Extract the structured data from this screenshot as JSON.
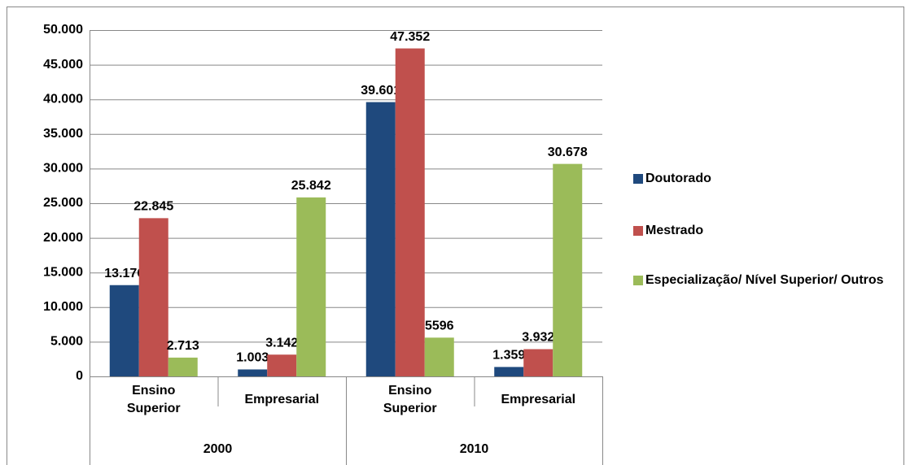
{
  "chart_data": {
    "type": "bar",
    "groups": [
      {
        "label": "2000",
        "categories": [
          "Ensino Superior",
          "Empresarial"
        ]
      },
      {
        "label": "2010",
        "categories": [
          "Ensino Superior",
          "Empresarial"
        ]
      }
    ],
    "series": [
      {
        "name": "Doutorado",
        "color": "#1f497d",
        "values": [
          13176,
          1003,
          39601,
          1359
        ],
        "value_labels": [
          "13.176",
          "1.003",
          "39.601",
          "1.359"
        ]
      },
      {
        "name": "Mestrado",
        "color": "#c0504d",
        "values": [
          22845,
          3142,
          47352,
          3932
        ],
        "value_labels": [
          "22.845",
          "3.142",
          "47.352",
          "3.932"
        ]
      },
      {
        "name": "Especialização/ Nível Superior/ Outros",
        "color": "#9bbb59",
        "values": [
          2713,
          25842,
          5596,
          30678
        ],
        "value_labels": [
          "2.713",
          "25.842",
          "5596",
          "30.678"
        ]
      }
    ],
    "ylim": [
      0,
      50000
    ],
    "yticks": [
      0,
      {
        "value": 5000,
        "label": "5.000"
      },
      {
        "value": 10000,
        "label": "10.000"
      },
      {
        "value": 15000,
        "label": "15.000"
      },
      {
        "value": 20000,
        "label": "20.000"
      },
      {
        "value": 25000,
        "label": "25.000"
      },
      {
        "value": 30000,
        "label": "30.000"
      },
      {
        "value": 35000,
        "label": "35.000"
      },
      {
        "value": 40000,
        "label": "40.000"
      },
      {
        "value": 45000,
        "label": "45.000"
      },
      {
        "value": 50000,
        "label": "50.000"
      }
    ],
    "grid": true,
    "legend": "right"
  }
}
